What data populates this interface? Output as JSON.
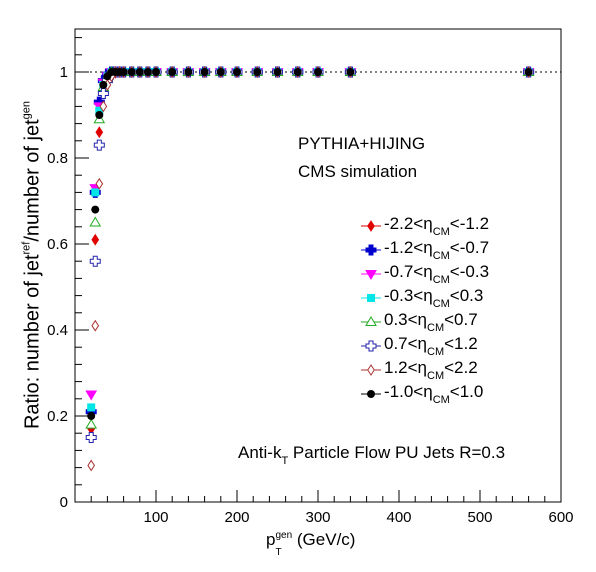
{
  "chart_data": {
    "type": "scatter",
    "x_label": {
      "base": "p",
      "sub": "T",
      "sup": "gen",
      "unit": "(GeV/c)"
    },
    "y_label": {
      "pre": "Ratio: number of jet",
      "sup1": "ref",
      "mid": "/number of jet",
      "sup2": "gen"
    },
    "xlim": [
      0,
      600
    ],
    "ylim": [
      0,
      1.1
    ],
    "x_ticks": [
      100,
      200,
      300,
      400,
      500,
      600
    ],
    "y_ticks": [
      0,
      0.2,
      0.4,
      0.6,
      0.8,
      1
    ],
    "grid": false,
    "reference_line": 1.0,
    "annotations": {
      "line1": "PYTHIA+HIJING",
      "line2": "CMS simulation",
      "jets_pre": "Anti-k",
      "jets_sub": "T",
      "jets_post": " Particle Flow PU Jets R=0.3"
    },
    "legend_position": "right",
    "x": [
      20,
      25,
      30,
      35,
      40,
      45,
      50,
      55,
      60,
      70,
      80,
      90,
      100,
      120,
      140,
      160,
      180,
      200,
      225,
      250,
      275,
      300,
      340,
      560
    ],
    "series": [
      {
        "label": [
          "-2.2<",
          "CM",
          "<-1.2"
        ],
        "color": "#e00000",
        "marker": "diamond-filled",
        "values": [
          0.17,
          0.61,
          0.86,
          0.955,
          0.985,
          0.995,
          0.998,
          1,
          1,
          1,
          1,
          1,
          1,
          1,
          1,
          1,
          1,
          1,
          1,
          1,
          1,
          1,
          1,
          1
        ]
      },
      {
        "label": [
          "-1.2<",
          "CM",
          "<-0.7"
        ],
        "color": "#0000cc",
        "marker": "cross-filled",
        "values": [
          0.21,
          0.72,
          0.93,
          0.98,
          0.995,
          1,
          1,
          1,
          1,
          1,
          1,
          1,
          1,
          1,
          1,
          1,
          1,
          1,
          1,
          1,
          1,
          1,
          1,
          1
        ]
      },
      {
        "label": [
          "-0.7<",
          "CM",
          "<-0.3"
        ],
        "color": "#ff00ff",
        "marker": "tri-down",
        "values": [
          0.25,
          0.73,
          0.92,
          0.975,
          0.99,
          1,
          1,
          1,
          1,
          1,
          1,
          1,
          1,
          1,
          1,
          1,
          1,
          1,
          1,
          1,
          1,
          1,
          1,
          1
        ]
      },
      {
        "label": [
          "-0.3<",
          "CM",
          "<0.3"
        ],
        "color": "#00e5e5",
        "marker": "square-filled",
        "values": [
          0.22,
          0.72,
          0.91,
          0.97,
          0.99,
          1,
          1,
          1,
          1,
          1,
          1,
          1,
          1,
          1,
          1,
          1,
          1,
          1,
          1,
          1,
          1,
          1,
          1,
          1
        ]
      },
      {
        "label": [
          "0.3<",
          "CM",
          "<0.7"
        ],
        "color": "#22aa22",
        "marker": "tri-open",
        "values": [
          0.18,
          0.65,
          0.89,
          0.965,
          0.99,
          1,
          1,
          1,
          1,
          1,
          1,
          1,
          1,
          1,
          1,
          1,
          1,
          1,
          1,
          1,
          1,
          1,
          1,
          1
        ]
      },
      {
        "label": [
          "0.7<",
          "CM",
          "<1.2"
        ],
        "color": "#2222aa",
        "marker": "cross-open",
        "values": [
          0.15,
          0.56,
          0.83,
          0.95,
          0.98,
          0.995,
          1,
          1,
          1,
          1,
          1,
          1,
          1,
          1,
          1,
          1,
          1,
          1,
          1,
          1,
          1,
          1,
          1,
          1
        ]
      },
      {
        "label": [
          "1.2<",
          "CM",
          "<2.2"
        ],
        "color": "#aa3333",
        "marker": "diamond-open",
        "values": [
          0.085,
          0.41,
          0.74,
          0.92,
          0.97,
          0.99,
          1,
          1,
          1,
          1,
          1,
          1,
          1,
          1,
          1,
          1,
          1,
          1,
          1,
          1,
          1,
          1,
          1,
          1
        ]
      },
      {
        "label": [
          "-1.0<",
          "CM",
          "<1.0"
        ],
        "color": "#000000",
        "marker": "circle-filled",
        "values": [
          0.2,
          0.68,
          0.9,
          0.97,
          0.99,
          1,
          1,
          1,
          1,
          1,
          1,
          1,
          1,
          1,
          1,
          1,
          1,
          1,
          1,
          1,
          1,
          1,
          1,
          1
        ]
      }
    ]
  }
}
